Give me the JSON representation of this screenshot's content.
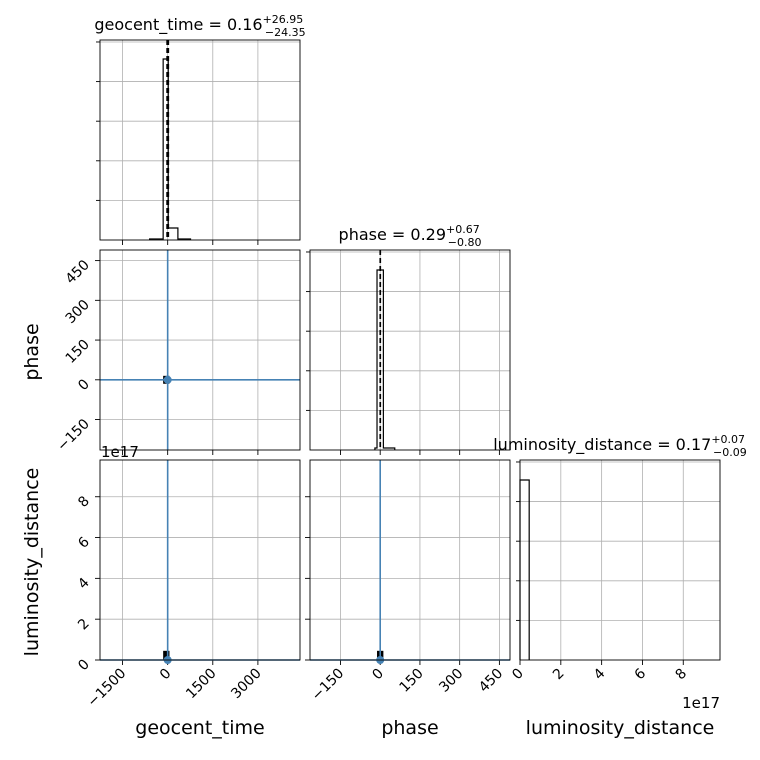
{
  "chart_data": {
    "type": "corner",
    "parameters": [
      "geocent_time",
      "phase",
      "luminosity_distance"
    ],
    "truth_line_color": "#4682b4",
    "panels": [
      {
        "id": "hist-geocent_time",
        "type": "histogram",
        "title": {
          "main": "geocent_time = 0.16",
          "sup": "+26.95",
          "sub": "−24.35"
        },
        "x_range": [
          -2250,
          4400
        ],
        "x_ticks": [
          -1500,
          0,
          1500,
          3000
        ],
        "bins": [
          {
            "x0": -600,
            "x1": -150,
            "density": 0.005
          },
          {
            "x0": -150,
            "x1": 20,
            "density": 0.905
          },
          {
            "x0": 20,
            "x1": 340,
            "density": 0.06
          },
          {
            "x0": 340,
            "x1": 760,
            "density": 0.005
          }
        ],
        "quantiles": [
          -24.19,
          0.16,
          27.11
        ],
        "y_tick_count": 5
      },
      {
        "id": "hist-phase",
        "type": "histogram",
        "title": {
          "main": "phase = 0.29",
          "sup": "+0.67",
          "sub": "−0.80"
        },
        "x_range": [
          -265,
          490
        ],
        "x_ticks": [
          -150,
          0,
          150,
          300,
          450
        ],
        "bins": [
          {
            "x0": -20,
            "x1": -12,
            "density": 0.01
          },
          {
            "x0": -12,
            "x1": 12,
            "density": 0.9
          },
          {
            "x0": 12,
            "x1": 55,
            "density": 0.01
          }
        ],
        "quantiles": [
          -0.51,
          0.29,
          0.96
        ],
        "y_tick_count": 5
      },
      {
        "id": "hist-luminosity_distance",
        "type": "histogram",
        "title": {
          "main": "luminosity_distance = 0.17",
          "sup": "+0.07",
          "sub": "−0.09"
        },
        "x_range": [
          0,
          9.8
        ],
        "x_multiplier": "1e17",
        "x_ticks": [
          0,
          2,
          4,
          6,
          8
        ],
        "bins": [
          {
            "x0": 0,
            "x1": 0.45,
            "density": 0.9
          }
        ],
        "quantiles": [],
        "y_tick_count": 5
      },
      {
        "id": "2d-phase-vs-geocent_time",
        "type": "scatter2d",
        "x_param": "geocent_time",
        "y_param": "phase",
        "x_range": [
          -2250,
          4400
        ],
        "y_range": [
          -265,
          490
        ],
        "y_ticks": [
          -150,
          0,
          150,
          300,
          450
        ],
        "x_ticks": [
          -1500,
          0,
          1500,
          3000
        ],
        "truth": [
          0,
          0
        ],
        "blob": {
          "x": [
            -150,
            60
          ],
          "y": [
            -15,
            15
          ]
        }
      },
      {
        "id": "2d-luminosity_distance-vs-geocent_time",
        "type": "scatter2d",
        "x_param": "geocent_time",
        "y_param": "luminosity_distance",
        "x_range": [
          -2250,
          4400
        ],
        "y_range": [
          0,
          9.8
        ],
        "y_multiplier": "1e17",
        "y_ticks": [
          0,
          2,
          4,
          6,
          8
        ],
        "x_ticks": [
          -1500,
          0,
          1500,
          3000
        ],
        "truth": [
          0,
          0
        ],
        "blob": {
          "x": [
            -150,
            60
          ],
          "y": [
            0,
            0.45
          ]
        }
      },
      {
        "id": "2d-luminosity_distance-vs-phase",
        "type": "scatter2d",
        "x_param": "phase",
        "y_param": "luminosity_distance",
        "x_range": [
          -265,
          490
        ],
        "y_range": [
          0,
          9.8
        ],
        "y_ticks": [
          0,
          2,
          4,
          6,
          8
        ],
        "x_ticks": [
          -150,
          0,
          150,
          300,
          450
        ],
        "truth": [
          0,
          0
        ],
        "blob": {
          "x": [
            -12,
            12
          ],
          "y": [
            0,
            0.45
          ]
        }
      }
    ],
    "axis_labels": {
      "phase": "phase",
      "luminosity_distance": "luminosity_distance",
      "geocent_time": "geocent_time"
    },
    "multipliers": {
      "left_col": "1e17",
      "bottom_row": "1e17"
    }
  }
}
